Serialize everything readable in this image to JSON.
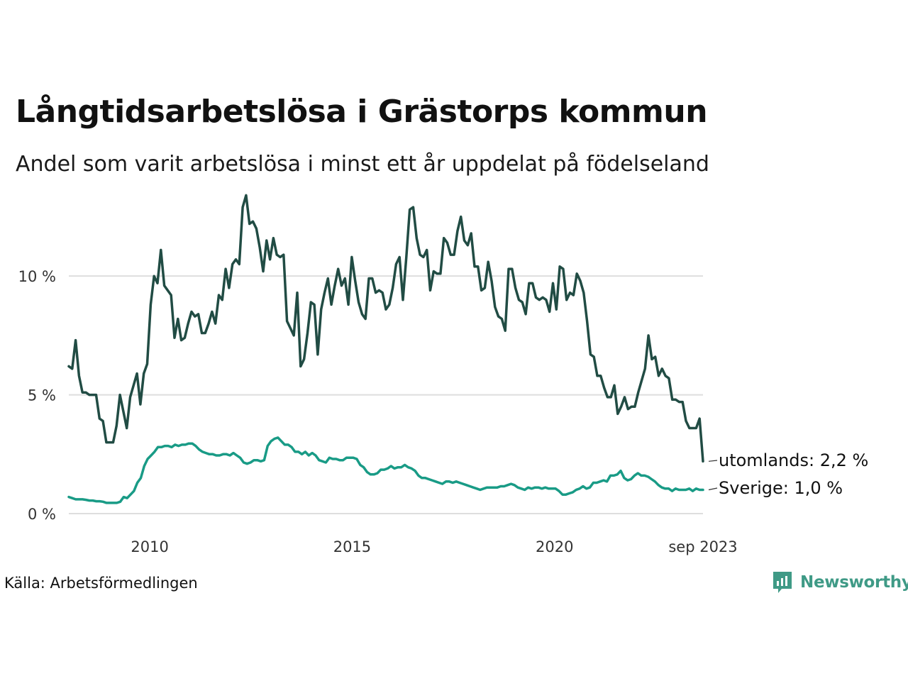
{
  "header": {
    "title": "Långtidsarbetslösa i Grästorps kommun",
    "subtitle": "Andel som varit arbetslösa i minst ett år uppdelat på födelseland"
  },
  "footer": {
    "source": "Källa: Arbetsförmedlingen",
    "brand": "Newsworthy"
  },
  "colors": {
    "utomlands": "#214c44",
    "sverige": "#199b86",
    "grid": "#dedede",
    "brand": "#3f9a86"
  },
  "chart_data": {
    "type": "line",
    "title": "Långtidsarbetslösa i Grästorps kommun",
    "subtitle": "Andel som varit arbetslösa i minst ett år uppdelat på födelseland",
    "x_start": 2008.0,
    "x_step_months": 1,
    "xlim": [
      2008.0,
      2023.667
    ],
    "ylim": [
      0,
      13.5
    ],
    "y_ticks": [
      {
        "value": 0,
        "label": "0 %"
      },
      {
        "value": 5,
        "label": "5 %"
      },
      {
        "value": 10,
        "label": "10 %"
      }
    ],
    "x_ticks": [
      {
        "value": 2010.0,
        "label": "2010"
      },
      {
        "value": 2015.0,
        "label": "2015"
      },
      {
        "value": 2020.0,
        "label": "2020"
      },
      {
        "value": 2023.667,
        "label": "sep 2023"
      }
    ],
    "grid": true,
    "series": [
      {
        "name": "utomlands",
        "end_label": "utomlands: 2,2 %",
        "values": [
          6.2,
          6.1,
          7.3,
          5.8,
          5.1,
          5.1,
          5.0,
          5.0,
          5.0,
          4.0,
          3.9,
          3.0,
          3.0,
          3.0,
          3.7,
          5.0,
          4.3,
          3.6,
          4.9,
          5.4,
          5.9,
          4.6,
          5.9,
          6.3,
          8.8,
          10.0,
          9.7,
          11.1,
          9.6,
          9.4,
          9.2,
          7.4,
          8.2,
          7.3,
          7.4,
          8.0,
          8.5,
          8.3,
          8.4,
          7.6,
          7.6,
          8.0,
          8.5,
          8.0,
          9.2,
          9.0,
          10.3,
          9.5,
          10.5,
          10.7,
          10.5,
          12.9,
          13.4,
          12.2,
          12.3,
          12.0,
          11.2,
          10.2,
          11.5,
          10.7,
          11.6,
          10.9,
          10.8,
          10.9,
          8.1,
          7.8,
          7.5,
          9.3,
          6.2,
          6.5,
          7.6,
          8.9,
          8.8,
          6.7,
          8.6,
          9.3,
          9.9,
          8.8,
          9.6,
          10.3,
          9.6,
          9.9,
          8.8,
          10.8,
          9.8,
          8.9,
          8.4,
          8.2,
          9.9,
          9.9,
          9.3,
          9.4,
          9.3,
          8.6,
          8.8,
          9.5,
          10.5,
          10.8,
          9.0,
          10.8,
          12.8,
          12.9,
          11.6,
          10.9,
          10.8,
          11.1,
          9.4,
          10.2,
          10.1,
          10.1,
          11.6,
          11.4,
          10.9,
          10.9,
          11.9,
          12.5,
          11.5,
          11.3,
          11.8,
          10.4,
          10.4,
          9.4,
          9.5,
          10.6,
          9.8,
          8.7,
          8.3,
          8.2,
          7.7,
          10.3,
          10.3,
          9.5,
          9.0,
          8.9,
          8.4,
          9.7,
          9.7,
          9.1,
          9.0,
          9.1,
          9.0,
          8.5,
          9.7,
          8.6,
          10.4,
          10.3,
          9.0,
          9.3,
          9.2,
          10.1,
          9.8,
          9.3,
          8.1,
          6.7,
          6.6,
          5.8,
          5.8,
          5.3,
          4.9,
          4.9,
          5.4,
          4.2,
          4.5,
          4.9,
          4.4,
          4.5,
          4.5,
          5.1,
          5.6,
          6.1,
          7.5,
          6.5,
          6.6,
          5.8,
          6.1,
          5.8,
          5.7,
          4.8,
          4.8,
          4.7,
          4.7,
          3.9,
          3.6,
          3.6,
          3.6,
          4.0,
          2.2
        ]
      },
      {
        "name": "Sverige",
        "end_label": "Sverige: 1,0 %",
        "values": [
          0.7,
          0.65,
          0.6,
          0.6,
          0.6,
          0.58,
          0.55,
          0.55,
          0.52,
          0.52,
          0.5,
          0.45,
          0.45,
          0.45,
          0.45,
          0.5,
          0.7,
          0.65,
          0.8,
          0.95,
          1.3,
          1.5,
          2.0,
          2.3,
          2.45,
          2.6,
          2.8,
          2.8,
          2.85,
          2.85,
          2.8,
          2.9,
          2.85,
          2.9,
          2.9,
          2.95,
          2.95,
          2.85,
          2.7,
          2.6,
          2.55,
          2.5,
          2.5,
          2.45,
          2.45,
          2.5,
          2.5,
          2.45,
          2.55,
          2.45,
          2.35,
          2.15,
          2.1,
          2.15,
          2.25,
          2.25,
          2.2,
          2.25,
          2.85,
          3.05,
          3.15,
          3.2,
          3.05,
          2.9,
          2.9,
          2.8,
          2.6,
          2.6,
          2.5,
          2.6,
          2.45,
          2.55,
          2.45,
          2.25,
          2.2,
          2.15,
          2.35,
          2.3,
          2.3,
          2.25,
          2.25,
          2.35,
          2.35,
          2.35,
          2.3,
          2.05,
          1.95,
          1.75,
          1.65,
          1.65,
          1.7,
          1.85,
          1.85,
          1.9,
          2.0,
          1.9,
          1.95,
          1.95,
          2.05,
          1.95,
          1.9,
          1.8,
          1.6,
          1.5,
          1.5,
          1.45,
          1.4,
          1.35,
          1.3,
          1.25,
          1.35,
          1.35,
          1.3,
          1.35,
          1.3,
          1.25,
          1.2,
          1.15,
          1.1,
          1.05,
          1.0,
          1.05,
          1.1,
          1.1,
          1.1,
          1.1,
          1.15,
          1.15,
          1.2,
          1.25,
          1.2,
          1.1,
          1.05,
          1.0,
          1.1,
          1.05,
          1.1,
          1.1,
          1.05,
          1.1,
          1.05,
          1.05,
          1.05,
          0.95,
          0.8,
          0.8,
          0.85,
          0.9,
          1.0,
          1.05,
          1.15,
          1.05,
          1.1,
          1.3,
          1.3,
          1.35,
          1.4,
          1.35,
          1.6,
          1.6,
          1.65,
          1.8,
          1.5,
          1.4,
          1.45,
          1.6,
          1.7,
          1.6,
          1.6,
          1.55,
          1.45,
          1.35,
          1.2,
          1.1,
          1.05,
          1.05,
          0.95,
          1.05,
          1.0,
          1.0,
          1.0,
          1.05,
          0.95,
          1.05,
          1.0,
          1.0
        ]
      }
    ]
  }
}
